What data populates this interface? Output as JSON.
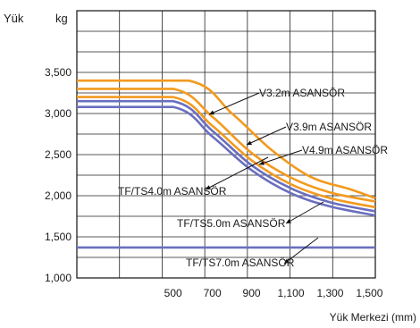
{
  "chart_data": {
    "type": "line",
    "y_unit_label": "Yük",
    "y_unit": "kg",
    "xlabel": "Yük Merkezi (mm)",
    "x_tick_labels": [
      "500",
      "700",
      "900",
      "1,100",
      "1,300",
      "1,500"
    ],
    "x_ticks": [
      500,
      700,
      900,
      1100,
      1300,
      1500
    ],
    "y_tick_labels": [
      "1,000",
      "1,500",
      "2,000",
      "2,500",
      "3,000",
      "3,500"
    ],
    "y_ticks": [
      1000,
      1500,
      2000,
      2500,
      3000,
      3500
    ],
    "xlim": [
      10,
      1530
    ],
    "ylim": [
      1000,
      4250
    ],
    "grid": true,
    "series": [
      {
        "key": "v32",
        "color": "#f39a1e",
        "x": [
          10,
          580,
          800,
          1000,
          1200,
          1400,
          1530
        ],
        "y": [
          3400,
          3400,
          3000,
          2560,
          2230,
          2080,
          1970
        ]
      },
      {
        "key": "v39",
        "color": "#f39a1e",
        "x": [
          10,
          500,
          700,
          900,
          1100,
          1300,
          1530
        ],
        "y": [
          3300,
          3300,
          2960,
          2520,
          2220,
          2040,
          1930
        ]
      },
      {
        "key": "v49",
        "color": "#f39a1e",
        "x": [
          10,
          500,
          700,
          900,
          1100,
          1300,
          1530
        ],
        "y": [
          3200,
          3200,
          2850,
          2430,
          2140,
          1970,
          1860
        ]
      },
      {
        "key": "tf40",
        "color": "#6a6fbf",
        "x": [
          10,
          500,
          700,
          900,
          1100,
          1300,
          1530
        ],
        "y": [
          3150,
          3150,
          2790,
          2370,
          2090,
          1920,
          1810
        ]
      },
      {
        "key": "tf50",
        "color": "#6a6fbf",
        "x": [
          10,
          500,
          700,
          900,
          1100,
          1300,
          1530
        ],
        "y": [
          3080,
          3080,
          2720,
          2310,
          2030,
          1870,
          1760
        ]
      },
      {
        "key": "tf70",
        "color": "#6a6fbf",
        "x": [
          10,
          1530
        ],
        "y": [
          1370,
          1370
        ]
      }
    ],
    "labels": [
      {
        "series": "v32",
        "text": "V3.2m ASANSÖR"
      },
      {
        "series": "v39",
        "text": "V3.9m ASANSÖR"
      },
      {
        "series": "v49",
        "text": "V4.9m ASANSÖR"
      },
      {
        "series": "tf40",
        "text": "TF/TS4.0m ASANSÖR"
      },
      {
        "series": "tf50",
        "text": "TF/TS5.0m ASANSÖR"
      },
      {
        "series": "tf70",
        "text": "TF/TS7.0m ASANSÖR"
      }
    ]
  }
}
